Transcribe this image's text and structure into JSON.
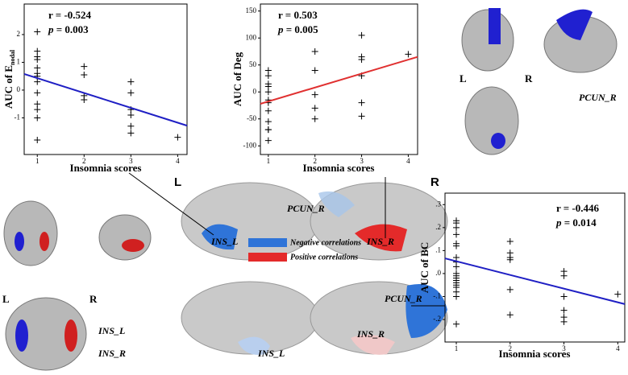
{
  "chart_data": [
    {
      "type": "scatter",
      "x_label": "Insomnia scores",
      "y_label": "AUC of E",
      "y_label_sub": "nodal",
      "r_text": "r = -0.524",
      "p_symbol": "p",
      "p_text": " = 0.003",
      "x": [
        1,
        1,
        1,
        1,
        1,
        1,
        1,
        1,
        1,
        1,
        1,
        1,
        1,
        2,
        2,
        2,
        2,
        3,
        3,
        3,
        3,
        3,
        3,
        4
      ],
      "values": [
        2.1,
        1.4,
        1.2,
        1.1,
        0.8,
        0.6,
        0.5,
        0.3,
        -0.1,
        -0.5,
        -0.7,
        -1.0,
        -1.8,
        0.85,
        0.55,
        -0.2,
        -0.35,
        0.3,
        -0.1,
        -0.7,
        -0.9,
        -1.3,
        -1.55,
        -1.7
      ],
      "color": "#000000",
      "fit": {
        "x": [
          0.72,
          4.2
        ],
        "values": [
          0.58,
          -1.28
        ],
        "color": "#1f1fc4"
      },
      "xlim": [
        0.72,
        4.2
      ],
      "ylim": [
        -2.32,
        3.1
      ],
      "xticks": [
        1,
        2,
        3,
        4
      ],
      "yticks": [
        -1,
        0,
        1,
        2
      ]
    },
    {
      "type": "scatter",
      "x_label": "Insomnia scores",
      "y_label": "AUC of Deg",
      "r_text": "r = 0.503",
      "p_symbol": "p",
      "p_text": " = 0.005",
      "x": [
        1,
        1,
        1,
        1,
        1,
        1,
        1,
        1,
        1,
        1,
        1,
        1,
        2,
        2,
        2,
        2,
        2,
        3,
        3,
        3,
        3,
        3,
        3,
        4
      ],
      "values": [
        40,
        30,
        15,
        10,
        0,
        -15,
        -20,
        -35,
        -55,
        -70,
        -70,
        -90,
        75,
        40,
        -5,
        -30,
        -50,
        105,
        65,
        60,
        30,
        -20,
        -45,
        70
      ],
      "color": "#000000",
      "fit": {
        "x": [
          0.83,
          4.2
        ],
        "values": [
          -22,
          65
        ],
        "color": "#e03030"
      },
      "xlim": [
        0.83,
        4.2
      ],
      "ylim": [
        -116,
        163
      ],
      "xticks": [
        1,
        2,
        3,
        4
      ],
      "yticks": [
        -100,
        -50,
        0,
        50,
        100,
        150
      ]
    },
    {
      "type": "scatter",
      "x_label": "Insomnia scores",
      "y_label": "AUC of BC",
      "r_text": "r = -0.446",
      "p_symbol": "p",
      "p_text": " = 0.014",
      "x": [
        1,
        1,
        1,
        1,
        1,
        1,
        1,
        1,
        1,
        1,
        1,
        1,
        1,
        1,
        1,
        1,
        1,
        1,
        1,
        2,
        2,
        2,
        2,
        2,
        2,
        3,
        3,
        3,
        3,
        3,
        3,
        4
      ],
      "values": [
        0.23,
        0.22,
        0.2,
        0.17,
        0.13,
        0.12,
        0.07,
        0.05,
        0.03,
        0.0,
        -0.01,
        -0.02,
        -0.03,
        -0.04,
        -0.05,
        -0.06,
        -0.08,
        -0.1,
        -0.22,
        0.14,
        0.09,
        0.07,
        0.06,
        -0.07,
        -0.18,
        0.01,
        -0.01,
        -0.1,
        -0.16,
        -0.19,
        -0.21,
        -0.09
      ],
      "color": "#000000",
      "fit": {
        "x": [
          0.79,
          4.13
        ],
        "values": [
          0.066,
          -0.133
        ],
        "color": "#1f1fc4"
      },
      "xlim": [
        0.79,
        4.13
      ],
      "ylim": [
        -0.298,
        0.35
      ],
      "xticks": [
        1,
        2,
        3,
        4
      ],
      "yticks": [
        {
          "value": -0.2,
          "label": "-.2"
        },
        {
          "value": -0.1,
          "label": "-.1"
        },
        {
          "value": 0,
          "label": ".0"
        },
        {
          "value": 0.1,
          "label": ".1"
        },
        {
          "value": 0.2,
          "label": ".2"
        },
        {
          "value": 0.3,
          "label": ".3"
        }
      ]
    }
  ],
  "brain": {
    "center_left": "L",
    "center_right": "R",
    "pcun_top": "PCUN_R",
    "ins_l_top": "INS_L",
    "ins_r_top": "INS_R",
    "legend_negative": "Negative correlations",
    "legend_positive": "Positive correlations",
    "ins_l_bottom": "INS_L",
    "pcun_bottom": "PCUN_R",
    "ins_r_bottom": "INS_R",
    "slice_left": "L",
    "slice_right": "R",
    "slice_ins_l": "INS_L",
    "slice_ins_r": "INS_R",
    "tr_left": "L",
    "tr_right": "R",
    "tr_pcun": "PCUN_R"
  }
}
